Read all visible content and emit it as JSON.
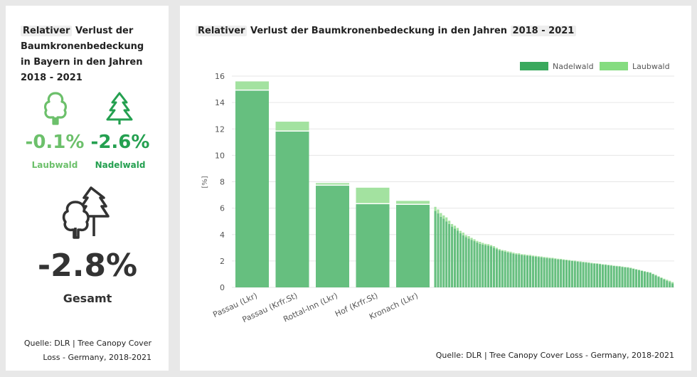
{
  "left_panel": {
    "title_highlight": "Relativer",
    "title_rest": " Verlust der Baumkronenbedeckung in Bayern in den Jahren 2018 - 2021",
    "laubwald": {
      "value": "-0.1%",
      "label": "Laubwald",
      "icon": "deciduous-tree-icon",
      "color": "#6cc06b"
    },
    "nadelwald": {
      "value": "-2.6%",
      "label": "Nadelwald",
      "icon": "conifer-tree-icon",
      "color": "#24a050"
    },
    "gesamt": {
      "value": "-2.8%",
      "label": "Gesamt",
      "icon": "mixed-trees-icon"
    },
    "source": "Quelle: DLR | Tree Canopy Cover Loss - Germany, 2018-2021"
  },
  "right_panel": {
    "title_highlight_1": "Relativer",
    "title_middle": " Verlust der Baumkronenbedeckung in den Jahren ",
    "title_highlight_2": "2018 - 2021",
    "source": "Quelle: DLR | Tree Canopy Cover Loss - Germany, 2018-2021"
  },
  "chart_data": {
    "type": "bar",
    "stacked": true,
    "ylabel": "[%]",
    "ylim": [
      0,
      16
    ],
    "yticks": [
      0,
      2,
      4,
      6,
      8,
      10,
      12,
      14,
      16
    ],
    "grid": true,
    "legend_position": "top-right",
    "colors": {
      "Nadelwald": "#66bf7f",
      "Laubwald": "#a3e2a0"
    },
    "legend_colors": {
      "Nadelwald": "#3aa95d",
      "Laubwald": "#85dc80"
    },
    "categories": [
      "Passau (Lkr)",
      "Passau (Krfr.St)",
      "Rottal-Inn (Lkr)",
      "Hof (Krfr.St)",
      "Kronach (Lkr)"
    ],
    "series": [
      {
        "name": "Nadelwald",
        "values": [
          14.9,
          11.8,
          7.7,
          6.3,
          6.25
        ]
      },
      {
        "name": "Laubwald",
        "values": [
          0.7,
          0.75,
          0.2,
          1.25,
          0.3
        ]
      }
    ],
    "remaining_districts_nadelwald": [
      5.8,
      5.6,
      5.35,
      5.2,
      5.0,
      4.8,
      4.6,
      4.45,
      4.3,
      4.1,
      3.95,
      3.8,
      3.7,
      3.6,
      3.5,
      3.4,
      3.3,
      3.25,
      3.2,
      3.15,
      3.1,
      3.0,
      2.9,
      2.8,
      2.75,
      2.7,
      2.65,
      2.6,
      2.55,
      2.5,
      2.48,
      2.45,
      2.42,
      2.4,
      2.38,
      2.35,
      2.32,
      2.3,
      2.28,
      2.25,
      2.22,
      2.2,
      2.18,
      2.15,
      2.12,
      2.1,
      2.08,
      2.05,
      2.02,
      2.0,
      1.98,
      1.95,
      1.92,
      1.9,
      1.88,
      1.85,
      1.82,
      1.8,
      1.78,
      1.75,
      1.72,
      1.7,
      1.68,
      1.65,
      1.62,
      1.6,
      1.58,
      1.55,
      1.52,
      1.5,
      1.45,
      1.4,
      1.35,
      1.3,
      1.25,
      1.2,
      1.15,
      1.1,
      1.0,
      0.9,
      0.8,
      0.7,
      0.6,
      0.5,
      0.4,
      0.3
    ],
    "remaining_districts_laubwald": [
      0.3,
      0.3,
      0.28,
      0.25,
      0.3,
      0.25,
      0.2,
      0.22,
      0.2,
      0.18,
      0.2,
      0.15,
      0.18,
      0.15,
      0.14,
      0.12,
      0.15,
      0.12,
      0.1,
      0.12,
      0.1,
      0.12,
      0.1,
      0.1,
      0.08,
      0.1,
      0.08,
      0.1,
      0.08,
      0.08,
      0.1,
      0.06,
      0.08,
      0.06,
      0.08,
      0.06,
      0.07,
      0.06,
      0.06,
      0.05,
      0.07,
      0.05,
      0.06,
      0.05,
      0.05,
      0.06,
      0.04,
      0.05,
      0.05,
      0.04,
      0.05,
      0.04,
      0.05,
      0.04,
      0.04,
      0.05,
      0.04,
      0.03,
      0.04,
      0.04,
      0.03,
      0.04,
      0.03,
      0.04,
      0.03,
      0.03,
      0.04,
      0.03,
      0.03,
      0.03,
      0.04,
      0.03,
      0.03,
      0.04,
      0.03,
      0.03,
      0.03,
      0.04,
      0.03,
      0.05,
      0.04,
      0.05,
      0.06,
      0.08,
      0.1,
      0.1
    ]
  }
}
